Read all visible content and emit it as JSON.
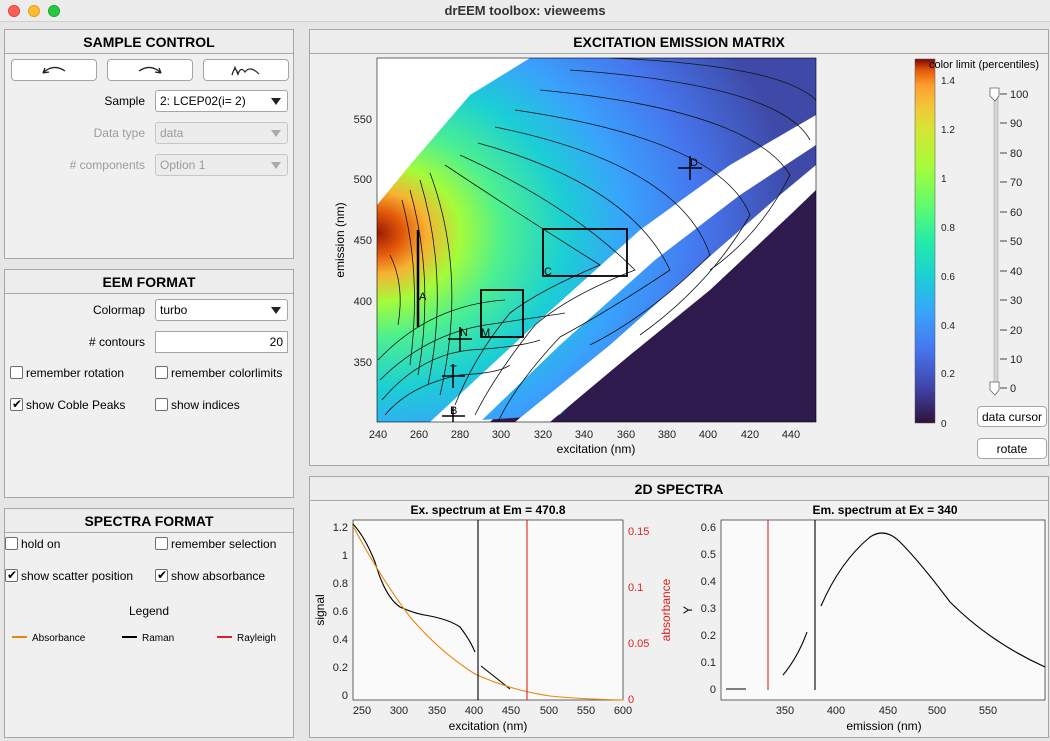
{
  "window": {
    "title": "drEEM toolbox: vieweems"
  },
  "sample_control": {
    "title": "SAMPLE CONTROL",
    "prev_icon": "undo-arrow-icon",
    "next_icon": "redo-arrow-icon",
    "overlay_icon": "multi-spectra-icon",
    "sample_label": "Sample",
    "sample_value": "2: LCEP02(i= 2)",
    "data_type_label": "Data type",
    "data_type_value": "data",
    "components_label": "# components",
    "components_value": "Option 1"
  },
  "eem_format": {
    "title": "EEM FORMAT",
    "colormap_label": "Colormap",
    "colormap_value": "turbo",
    "contours_label": "# contours",
    "contours_value": "20",
    "remember_rotation": "remember rotation",
    "remember_colorlimits": "remember colorlimits",
    "show_coble": "show Coble Peaks",
    "show_indices": "show indices"
  },
  "spectra_format": {
    "title": "SPECTRA FORMAT",
    "hold_on": "hold on",
    "remember_selection": "remember selection",
    "show_scatter": "show scatter position",
    "show_absorbance": "show absorbance",
    "legend_title": "Legend",
    "legend": [
      {
        "label": "Absorbance",
        "color": "#e8870e"
      },
      {
        "label": "Raman",
        "color": "#000000"
      },
      {
        "label": "Rayleigh",
        "color": "#e02020"
      }
    ]
  },
  "eem": {
    "title": "EXCITATION EMISSION MATRIX",
    "xlabel": "excitation (nm)",
    "ylabel": "emission (nm)",
    "xticks": [
      "240",
      "260",
      "280",
      "300",
      "320",
      "340",
      "360",
      "380",
      "400",
      "420",
      "440"
    ],
    "yticks": [
      "350",
      "400",
      "450",
      "500",
      "550"
    ],
    "peaks": [
      "A",
      "B",
      "C",
      "D",
      "M",
      "N",
      "T"
    ],
    "colorbar_ticks": [
      "0",
      "0.2",
      "0.4",
      "0.6",
      "0.8",
      "1",
      "1.2",
      "1.4"
    ],
    "colorbar_label": "color limit (percentiles)",
    "slider_ticks": [
      "0",
      "10",
      "20",
      "30",
      "40",
      "50",
      "60",
      "70",
      "80",
      "90",
      "100"
    ],
    "data_cursor_button": "data cursor",
    "rotate_button": "rotate"
  },
  "spectra": {
    "title": "2D SPECTRA",
    "left": {
      "title": "Ex. spectrum at Em = 470.8",
      "xlabel": "excitation (nm)",
      "ylabel": "signal",
      "y2label": "absorbance",
      "xticks": [
        "250",
        "300",
        "350",
        "400",
        "450",
        "500",
        "550",
        "600"
      ],
      "yticks": [
        "0",
        "0.2",
        "0.4",
        "0.6",
        "0.8",
        "1",
        "1.2"
      ],
      "y2ticks": [
        "0",
        "0.05",
        "0.1",
        "0.15"
      ]
    },
    "right": {
      "title": "Em. spectrum at Ex = 340",
      "xlabel": "emission (nm)",
      "ylabel": "Y",
      "xticks": [
        "350",
        "400",
        "450",
        "500",
        "550"
      ],
      "yticks": [
        "0",
        "0.1",
        "0.2",
        "0.3",
        "0.4",
        "0.5",
        "0.6"
      ]
    }
  }
}
